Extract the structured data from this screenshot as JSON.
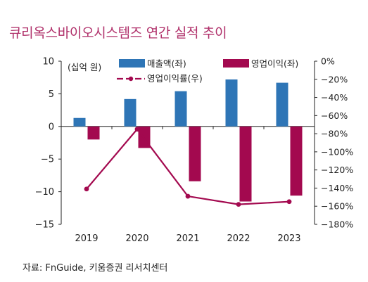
{
  "title": "큐리옥스바이오시스템즈 연간 실적 추이",
  "source": "자료: FnGuide, 키움증권 리서치센터",
  "chart_data": {
    "type": "bar",
    "categories": [
      "2019",
      "2020",
      "2021",
      "2022",
      "2023"
    ],
    "unit_label": "(십억 원)",
    "series": [
      {
        "name": "매출액(좌)",
        "axis": "left",
        "kind": "bar",
        "color": "#2e75b6",
        "values": [
          1.3,
          4.2,
          5.4,
          7.2,
          6.7
        ]
      },
      {
        "name": "영업이익(좌)",
        "axis": "left",
        "kind": "bar",
        "color": "#a3094f",
        "values": [
          -2.0,
          -3.3,
          -8.4,
          -11.5,
          -10.6
        ]
      },
      {
        "name": "영업이익률(우)",
        "axis": "right",
        "kind": "line",
        "color": "#a3094f",
        "values": [
          -141,
          -75,
          -149,
          -158,
          -155
        ]
      }
    ],
    "y_left": {
      "min": -15,
      "max": 10,
      "ticks": [
        10,
        5,
        0,
        -5,
        -10,
        -15
      ],
      "tick_labels": [
        "10",
        "5",
        "0",
        "−5",
        "−10",
        "−15"
      ]
    },
    "y_right": {
      "min": -180,
      "max": 0,
      "ticks": [
        0,
        -20,
        -40,
        -60,
        -80,
        -100,
        -120,
        -140,
        -160,
        -180
      ],
      "tick_labels": [
        "0%",
        "−20%",
        "−40%",
        "−60%",
        "−80%",
        "−100%",
        "−120%",
        "−140%",
        "−160%",
        "−180%"
      ]
    },
    "grid": false,
    "legend_position": "top"
  }
}
